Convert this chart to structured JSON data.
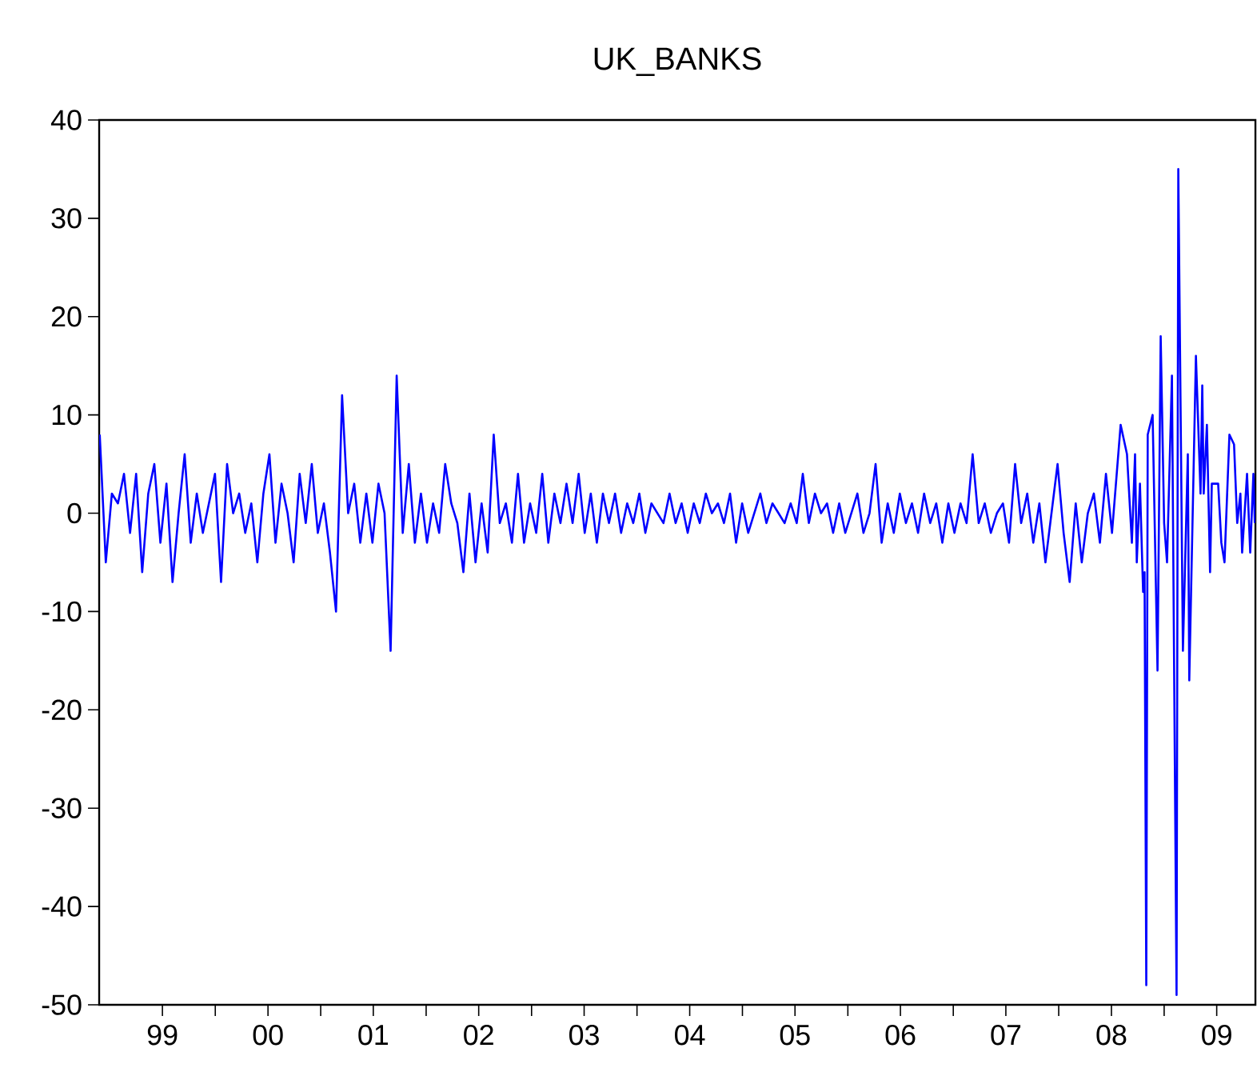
{
  "chart_data": {
    "type": "line",
    "title": "UK_BANKS",
    "x": [
      "1998-11-27",
      "1998-12-18",
      "1999-01-08",
      "1999-01-29",
      "1999-02-19",
      "1999-03-12",
      "1999-04-02",
      "1999-04-23",
      "1999-05-14",
      "1999-06-04",
      "1999-06-25",
      "1999-07-16",
      "1999-08-06",
      "1999-08-27",
      "1999-09-17",
      "1999-10-08",
      "1999-10-29",
      "1999-11-19",
      "1999-12-10",
      "1999-12-31",
      "2000-01-21",
      "2000-02-11",
      "2000-03-03",
      "2000-03-24",
      "2000-04-14",
      "2000-05-05",
      "2000-05-26",
      "2000-06-16",
      "2000-07-07",
      "2000-07-28",
      "2000-08-18",
      "2000-09-08",
      "2000-09-29",
      "2000-10-20",
      "2000-11-10",
      "2000-12-01",
      "2000-12-22",
      "2001-01-12",
      "2001-02-02",
      "2001-02-23",
      "2001-03-16",
      "2001-04-06",
      "2001-04-27",
      "2001-05-18",
      "2001-06-08",
      "2001-06-29",
      "2001-07-20",
      "2001-08-10",
      "2001-08-31",
      "2001-09-21",
      "2001-10-12",
      "2001-11-02",
      "2001-11-23",
      "2001-12-14",
      "2002-01-04",
      "2002-01-25",
      "2002-02-15",
      "2002-03-08",
      "2002-03-29",
      "2002-04-19",
      "2002-05-10",
      "2002-05-31",
      "2002-06-21",
      "2002-07-12",
      "2002-08-02",
      "2002-08-23",
      "2002-09-13",
      "2002-10-04",
      "2002-10-25",
      "2002-11-15",
      "2002-12-06",
      "2002-12-27",
      "2003-01-17",
      "2003-02-07",
      "2003-02-28",
      "2003-03-21",
      "2003-04-11",
      "2003-05-02",
      "2003-05-23",
      "2003-06-13",
      "2003-07-04",
      "2003-07-25",
      "2003-08-15",
      "2003-09-05",
      "2003-09-26",
      "2003-10-17",
      "2003-11-07",
      "2003-11-28",
      "2003-12-19",
      "2004-01-09",
      "2004-01-30",
      "2004-02-20",
      "2004-03-12",
      "2004-04-02",
      "2004-04-23",
      "2004-05-14",
      "2004-06-04",
      "2004-06-25",
      "2004-07-16",
      "2004-08-06",
      "2004-08-27",
      "2004-09-17",
      "2004-10-08",
      "2004-10-29",
      "2004-11-19",
      "2004-12-10",
      "2004-12-31",
      "2005-01-21",
      "2005-02-11",
      "2005-03-04",
      "2005-03-25",
      "2005-04-15",
      "2005-05-06",
      "2005-05-27",
      "2005-06-17",
      "2005-07-08",
      "2005-07-29",
      "2005-08-19",
      "2005-09-09",
      "2005-09-30",
      "2005-10-21",
      "2005-11-11",
      "2005-12-02",
      "2005-12-23",
      "2006-01-13",
      "2006-02-03",
      "2006-02-24",
      "2006-03-17",
      "2006-04-07",
      "2006-04-28",
      "2006-05-19",
      "2006-06-09",
      "2006-06-30",
      "2006-07-21",
      "2006-08-11",
      "2006-09-01",
      "2006-09-22",
      "2006-10-13",
      "2006-11-03",
      "2006-11-24",
      "2006-12-15",
      "2007-01-05",
      "2007-01-26",
      "2007-02-16",
      "2007-03-09",
      "2007-03-30",
      "2007-04-20",
      "2007-05-11",
      "2007-06-01",
      "2007-06-22",
      "2007-07-13",
      "2007-08-03",
      "2007-08-24",
      "2007-09-14",
      "2007-10-05",
      "2007-10-26",
      "2007-11-16",
      "2007-12-07",
      "2007-12-28",
      "2008-01-18",
      "2008-02-08",
      "2008-02-29",
      "2008-03-21",
      "2008-04-11",
      "2008-05-02",
      "2008-05-23",
      "2008-06-13",
      "2008-07-04",
      "2008-08-03",
      "2008-08-25",
      "2008-09-11",
      "2008-09-22",
      "2008-09-28",
      "2008-10-09",
      "2008-10-20",
      "2008-10-25",
      "2008-10-31",
      "2008-11-05",
      "2008-11-22",
      "2008-12-09",
      "2008-12-20",
      "2009-01-01",
      "2009-01-11",
      "2009-01-28",
      "2009-02-13",
      "2009-02-19",
      "2009-03-07",
      "2009-03-24",
      "2009-03-29",
      "2009-04-21",
      "2009-05-07",
      "2009-05-13",
      "2009-05-18",
      "2009-05-29",
      "2009-06-09",
      "2009-06-15",
      "2009-07-07",
      "2009-07-18",
      "2009-07-29",
      "2009-08-15",
      "2009-08-31",
      "2009-09-11",
      "2009-09-22",
      "2009-09-28",
      "2009-10-15",
      "2009-10-26",
      "2009-11-06",
      "2009-11-11"
    ],
    "series": [
      {
        "color": "#0000ff",
        "values": [
          8,
          -5,
          2,
          1,
          4,
          -2,
          4,
          -6,
          2,
          5,
          -3,
          3,
          -7,
          0,
          6,
          -3,
          2,
          -2,
          1,
          4,
          -7,
          5,
          0,
          2,
          -2,
          1,
          -5,
          2,
          6,
          -3,
          3,
          0,
          -5,
          4,
          -1,
          5,
          -2,
          1,
          -4,
          -10,
          12,
          0,
          3,
          -3,
          2,
          -3,
          3,
          0,
          -14,
          14,
          -2,
          5,
          -3,
          2,
          -3,
          1,
          -2,
          5,
          1,
          -1,
          -6,
          2,
          -5,
          1,
          -4,
          8,
          -1,
          1,
          -3,
          4,
          -3,
          1,
          -2,
          4,
          -3,
          2,
          -1,
          3,
          -1,
          4,
          -2,
          2,
          -3,
          2,
          -1,
          2,
          -2,
          1,
          -1,
          2,
          -2,
          1,
          0,
          -1,
          2,
          -1,
          1,
          -2,
          1,
          -1,
          2,
          0,
          1,
          -1,
          2,
          -3,
          1,
          -2,
          0,
          2,
          -1,
          1,
          0,
          -1,
          1,
          -1,
          4,
          -1,
          2,
          0,
          1,
          -2,
          1,
          -2,
          0,
          2,
          -2,
          0,
          5,
          -3,
          1,
          -2,
          2,
          -1,
          1,
          -2,
          2,
          -1,
          1,
          -3,
          1,
          -2,
          1,
          -1,
          6,
          -1,
          1,
          -2,
          0,
          1,
          -3,
          5,
          -1,
          2,
          -3,
          1,
          -5,
          0,
          5,
          -2,
          -7,
          1,
          -5,
          0,
          2,
          -3,
          4,
          -2,
          9,
          6,
          -3,
          6,
          -5,
          3,
          -8,
          -6,
          -48,
          8,
          10,
          -16,
          18,
          -1,
          -5,
          14,
          -49,
          35,
          -14,
          6,
          -17,
          16,
          2,
          13,
          2,
          9,
          -6,
          3,
          3,
          -3,
          -5,
          8,
          7,
          -1,
          2,
          -4,
          4,
          -4,
          4,
          -1
        ]
      }
    ],
    "xlim": [
      "1998-11-25",
      "2009-11-13"
    ],
    "ylim": [
      -50,
      40
    ],
    "xticks": [
      {
        "value": "1999-07-02",
        "label": "99"
      },
      {
        "value": "2000-01-01",
        "label": null
      },
      {
        "value": "2000-07-02",
        "label": "00"
      },
      {
        "value": "2001-01-01",
        "label": null
      },
      {
        "value": "2001-07-02",
        "label": "01"
      },
      {
        "value": "2002-01-01",
        "label": null
      },
      {
        "value": "2002-07-02",
        "label": "02"
      },
      {
        "value": "2003-01-01",
        "label": null
      },
      {
        "value": "2003-07-02",
        "label": "03"
      },
      {
        "value": "2004-01-01",
        "label": null
      },
      {
        "value": "2004-07-02",
        "label": "04"
      },
      {
        "value": "2005-01-01",
        "label": null
      },
      {
        "value": "2005-07-02",
        "label": "05"
      },
      {
        "value": "2006-01-01",
        "label": null
      },
      {
        "value": "2006-07-02",
        "label": "06"
      },
      {
        "value": "2007-01-01",
        "label": null
      },
      {
        "value": "2007-07-02",
        "label": "07"
      },
      {
        "value": "2008-01-01",
        "label": null
      },
      {
        "value": "2008-07-02",
        "label": "08"
      },
      {
        "value": "2009-01-01",
        "label": null
      },
      {
        "value": "2009-07-02",
        "label": "09"
      }
    ],
    "yticks": [
      40,
      30,
      20,
      10,
      0,
      -10,
      -20,
      -30,
      -40,
      -50
    ]
  }
}
